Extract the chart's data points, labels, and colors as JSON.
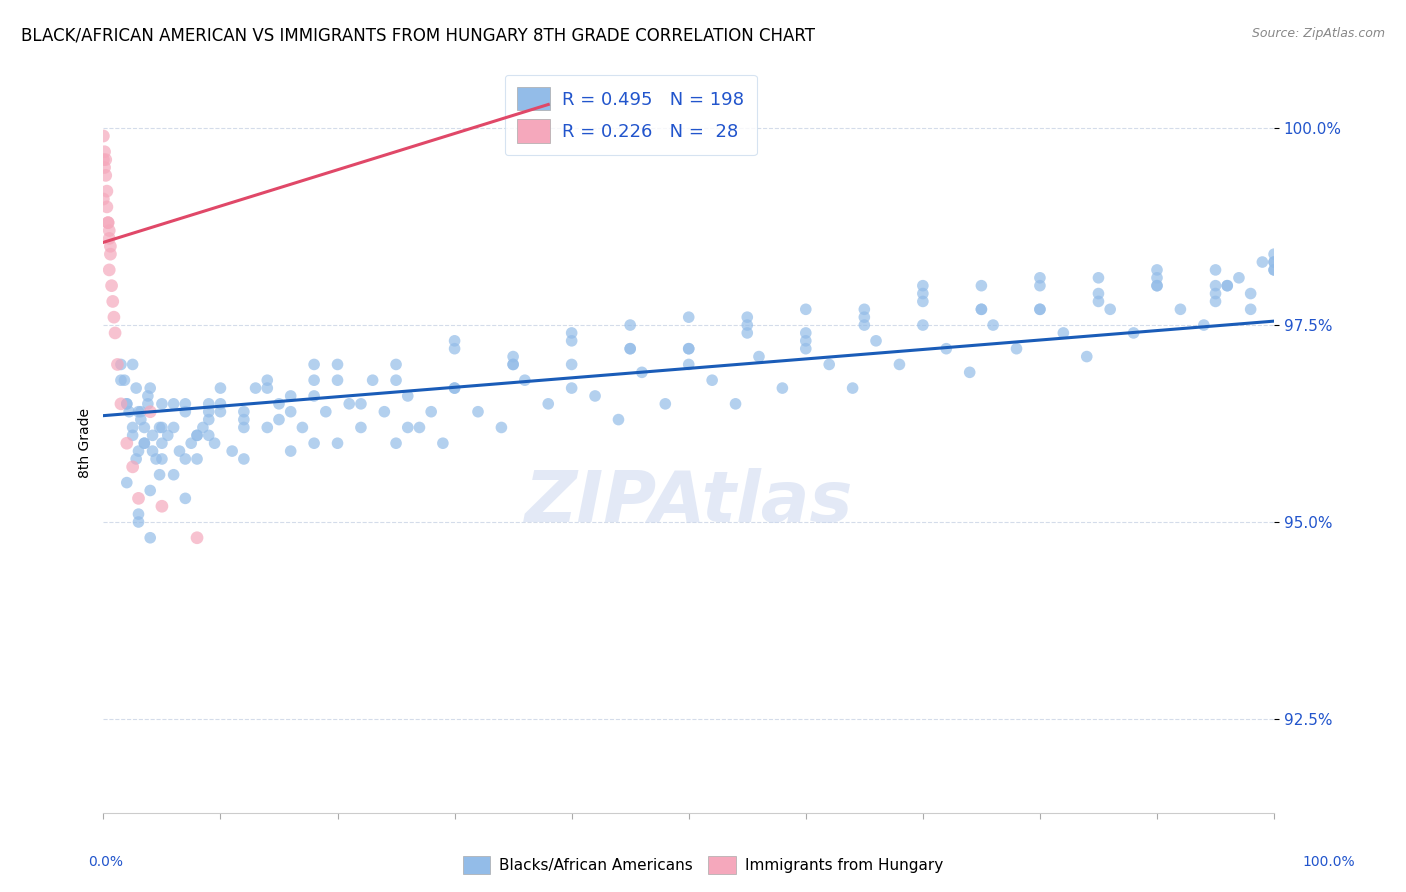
{
  "title": "BLACK/AFRICAN AMERICAN VS IMMIGRANTS FROM HUNGARY 8TH GRADE CORRELATION CHART",
  "source_text": "Source: ZipAtlas.com",
  "ylabel": "8th Grade",
  "watermark": "ZIPAtlas",
  "legend_entries": [
    {
      "label": "Blacks/African Americans",
      "R": 0.495,
      "N": 198
    },
    {
      "label": "Immigrants from Hungary",
      "R": 0.226,
      "N": 28
    }
  ],
  "ytick_labels": [
    "92.5%",
    "95.0%",
    "97.5%",
    "100.0%"
  ],
  "ytick_values": [
    0.925,
    0.95,
    0.975,
    1.0
  ],
  "blue_scatter_x": [
    0.02,
    0.025,
    0.028,
    0.03,
    0.032,
    0.035,
    0.038,
    0.04,
    0.042,
    0.045,
    0.048,
    0.05,
    0.015,
    0.018,
    0.022,
    0.025,
    0.028,
    0.032,
    0.035,
    0.038,
    0.042,
    0.048,
    0.055,
    0.06,
    0.065,
    0.07,
    0.075,
    0.08,
    0.085,
    0.09,
    0.095,
    0.1,
    0.11,
    0.12,
    0.13,
    0.14,
    0.15,
    0.16,
    0.17,
    0.18,
    0.19,
    0.2,
    0.21,
    0.22,
    0.23,
    0.24,
    0.25,
    0.26,
    0.27,
    0.28,
    0.29,
    0.3,
    0.32,
    0.34,
    0.36,
    0.38,
    0.4,
    0.42,
    0.44,
    0.46,
    0.48,
    0.5,
    0.52,
    0.54,
    0.56,
    0.58,
    0.6,
    0.62,
    0.64,
    0.66,
    0.68,
    0.7,
    0.72,
    0.74,
    0.76,
    0.78,
    0.8,
    0.82,
    0.84,
    0.86,
    0.88,
    0.9,
    0.92,
    0.94,
    0.96,
    0.98,
    1.0,
    0.02,
    0.03,
    0.04,
    0.05,
    0.06,
    0.07,
    0.08,
    0.09,
    0.1,
    0.12,
    0.14,
    0.16,
    0.18,
    0.2,
    0.25,
    0.3,
    0.35,
    0.4,
    0.45,
    0.5,
    0.55,
    0.6,
    0.65,
    0.7,
    0.75,
    0.8,
    0.85,
    0.9,
    0.95,
    1.0,
    0.03,
    0.05,
    0.07,
    0.09,
    0.12,
    0.15,
    0.18,
    0.22,
    0.26,
    0.3,
    0.35,
    0.4,
    0.45,
    0.5,
    0.55,
    0.6,
    0.65,
    0.7,
    0.75,
    0.8,
    0.85,
    0.9,
    0.95,
    1.0,
    0.015,
    0.02,
    0.025,
    0.03,
    0.035,
    0.04,
    0.05,
    0.06,
    0.07,
    0.08,
    0.09,
    0.1,
    0.12,
    0.14,
    0.16,
    0.18,
    0.2,
    0.25,
    0.3,
    0.35,
    0.4,
    0.45,
    0.5,
    0.55,
    0.6,
    0.65,
    0.7,
    0.75,
    0.8,
    0.85,
    0.9,
    0.95,
    1.0,
    0.95,
    0.96,
    0.97,
    0.98,
    0.99,
    1.0
  ],
  "blue_scatter_y": [
    0.965,
    0.962,
    0.967,
    0.959,
    0.964,
    0.96,
    0.966,
    0.954,
    0.961,
    0.958,
    0.956,
    0.962,
    0.97,
    0.968,
    0.964,
    0.961,
    0.958,
    0.963,
    0.96,
    0.965,
    0.959,
    0.962,
    0.961,
    0.965,
    0.959,
    0.964,
    0.96,
    0.958,
    0.962,
    0.965,
    0.96,
    0.964,
    0.959,
    0.963,
    0.967,
    0.962,
    0.965,
    0.959,
    0.962,
    0.966,
    0.964,
    0.96,
    0.965,
    0.962,
    0.968,
    0.964,
    0.96,
    0.966,
    0.962,
    0.964,
    0.96,
    0.967,
    0.964,
    0.962,
    0.968,
    0.965,
    0.97,
    0.966,
    0.963,
    0.969,
    0.965,
    0.972,
    0.968,
    0.965,
    0.971,
    0.967,
    0.973,
    0.97,
    0.967,
    0.973,
    0.97,
    0.975,
    0.972,
    0.969,
    0.975,
    0.972,
    0.977,
    0.974,
    0.971,
    0.977,
    0.974,
    0.98,
    0.977,
    0.975,
    0.98,
    0.977,
    0.982,
    0.955,
    0.95,
    0.948,
    0.96,
    0.956,
    0.958,
    0.961,
    0.963,
    0.965,
    0.962,
    0.967,
    0.964,
    0.968,
    0.97,
    0.968,
    0.972,
    0.97,
    0.973,
    0.975,
    0.972,
    0.976,
    0.974,
    0.977,
    0.98,
    0.977,
    0.981,
    0.979,
    0.982,
    0.98,
    0.983,
    0.951,
    0.958,
    0.953,
    0.961,
    0.958,
    0.963,
    0.96,
    0.965,
    0.962,
    0.967,
    0.97,
    0.967,
    0.972,
    0.97,
    0.975,
    0.972,
    0.976,
    0.978,
    0.98,
    0.977,
    0.981,
    0.98,
    0.982,
    0.984,
    0.968,
    0.965,
    0.97,
    0.964,
    0.962,
    0.967,
    0.965,
    0.962,
    0.965,
    0.961,
    0.964,
    0.967,
    0.964,
    0.968,
    0.966,
    0.97,
    0.968,
    0.97,
    0.973,
    0.971,
    0.974,
    0.972,
    0.976,
    0.974,
    0.977,
    0.975,
    0.979,
    0.977,
    0.98,
    0.978,
    0.981,
    0.979,
    0.983,
    0.978,
    0.98,
    0.981,
    0.979,
    0.983,
    0.982
  ],
  "pink_scatter_x": [
    0.0,
    0.0,
    0.002,
    0.003,
    0.004,
    0.005,
    0.005,
    0.006,
    0.007,
    0.008,
    0.009,
    0.01,
    0.012,
    0.015,
    0.02,
    0.025,
    0.03,
    0.04,
    0.05,
    0.08,
    0.0,
    0.001,
    0.001,
    0.002,
    0.003,
    0.004,
    0.005,
    0.006
  ],
  "pink_scatter_y": [
    0.996,
    0.991,
    0.994,
    0.99,
    0.988,
    0.987,
    0.982,
    0.985,
    0.98,
    0.978,
    0.976,
    0.974,
    0.97,
    0.965,
    0.96,
    0.957,
    0.953,
    0.964,
    0.952,
    0.948,
    0.999,
    0.997,
    0.995,
    0.996,
    0.992,
    0.988,
    0.986,
    0.984
  ],
  "blue_line_x": [
    0.0,
    1.0
  ],
  "blue_line_y": [
    0.9635,
    0.9755
  ],
  "pink_line_x": [
    0.0,
    0.38
  ],
  "pink_line_y": [
    0.9855,
    1.003
  ],
  "xlim": [
    0.0,
    1.0
  ],
  "ylim": [
    0.913,
    1.007
  ],
  "scatter_size": 70,
  "scatter_alpha": 0.7,
  "blue_scatter_color": "#93bce8",
  "pink_scatter_color": "#f5a8bc",
  "blue_line_color": "#1a5cb8",
  "pink_line_color": "#e04868",
  "title_fontsize": 12,
  "axis_label_color": "#2255cc",
  "grid_color": "#d4dcea",
  "background_color": "#ffffff",
  "watermark_color": "#ccd8f0",
  "watermark_alpha": 0.55
}
